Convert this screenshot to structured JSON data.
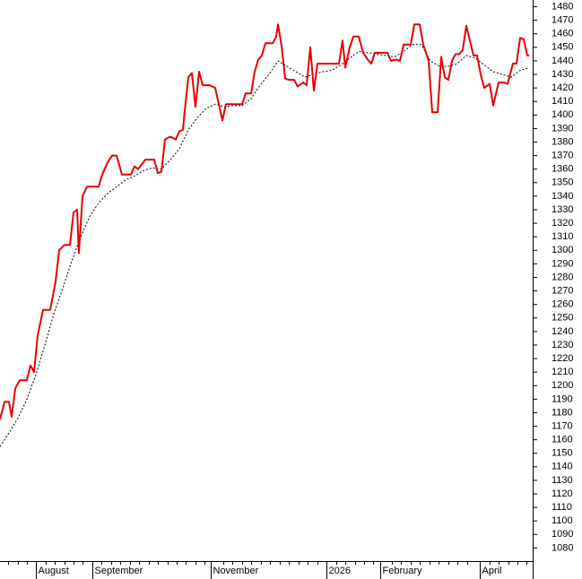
{
  "chart_data": {
    "type": "line",
    "xlim": [
      0,
      594
    ],
    "xticks": [
      {
        "value": 40,
        "label": "August"
      },
      {
        "value": 103,
        "label": "September"
      },
      {
        "value": 235,
        "label": "November"
      },
      {
        "value": 364,
        "label": "2026"
      },
      {
        "value": 424,
        "label": "February"
      },
      {
        "value": 535,
        "label": "April"
      }
    ],
    "xminorticks": [
      9,
      20,
      30,
      51,
      61,
      72,
      82,
      92,
      113,
      124,
      134,
      145,
      155,
      166,
      176,
      187,
      197,
      207,
      218,
      228,
      249,
      259,
      270,
      280,
      291,
      301,
      312,
      322,
      333,
      343,
      354,
      375,
      385,
      396,
      406,
      416,
      437,
      447,
      458,
      468,
      479,
      489,
      500,
      510,
      521,
      546,
      556,
      567,
      577,
      587
    ],
    "ylim": [
      1071,
      1485
    ],
    "yticks": [
      1080,
      1090,
      1100,
      1110,
      1120,
      1130,
      1140,
      1150,
      1160,
      1170,
      1180,
      1190,
      1200,
      1210,
      1220,
      1230,
      1240,
      1250,
      1260,
      1270,
      1280,
      1290,
      1300,
      1310,
      1320,
      1330,
      1340,
      1350,
      1360,
      1370,
      1380,
      1390,
      1400,
      1410,
      1420,
      1430,
      1440,
      1450,
      1460,
      1470,
      1480
    ],
    "series": [
      {
        "color": "#e60000",
        "style": "solid",
        "x": [
          0,
          5,
          10,
          13,
          17,
          22,
          30,
          34,
          38,
          42,
          48,
          56,
          62,
          66,
          72,
          78,
          82,
          86,
          88,
          92,
          97,
          110,
          114,
          120,
          125,
          130,
          136,
          146,
          150,
          154,
          162,
          172,
          176,
          180,
          184,
          190,
          196,
          200,
          204,
          206,
          210,
          214,
          218,
          222,
          226,
          234,
          240,
          244,
          248,
          252,
          260,
          270,
          274,
          280,
          284,
          288,
          292,
          296,
          304,
          308,
          310,
          314,
          318,
          322,
          328,
          332,
          338,
          342,
          346,
          350,
          354,
          360,
          366,
          378,
          382,
          385,
          390,
          394,
          400,
          405,
          410,
          414,
          418,
          426,
          432,
          436,
          442,
          446,
          450,
          458,
          462,
          468,
          472,
          478,
          482,
          488,
          492,
          496,
          500,
          504,
          508,
          512,
          516,
          520,
          524,
          528,
          532,
          536,
          540,
          546,
          550,
          556,
          562,
          566,
          572,
          576,
          580,
          584,
          588,
          590
        ],
        "values": [
          1175,
          1188,
          1188,
          1177,
          1198,
          1204,
          1204,
          1215,
          1210,
          1237,
          1256,
          1256,
          1277,
          1300,
          1304,
          1304,
          1328,
          1330,
          1298,
          1340,
          1347,
          1347,
          1356,
          1365,
          1370,
          1370,
          1356,
          1356,
          1362,
          1360,
          1367,
          1367,
          1357,
          1358,
          1382,
          1384,
          1382,
          1388,
          1389,
          1403,
          1428,
          1431,
          1406,
          1432,
          1422,
          1422,
          1420,
          1408,
          1396,
          1408,
          1408,
          1408,
          1416,
          1416,
          1432,
          1441,
          1444,
          1453,
          1453,
          1458,
          1467,
          1451,
          1427,
          1426,
          1426,
          1421,
          1424,
          1422,
          1450,
          1418,
          1438,
          1438,
          1438,
          1438,
          1455,
          1435,
          1450,
          1458,
          1458,
          1446,
          1441,
          1438,
          1446,
          1446,
          1446,
          1440,
          1441,
          1440,
          1452,
          1452,
          1467,
          1467,
          1452,
          1440,
          1402,
          1402,
          1443,
          1428,
          1426,
          1440,
          1445,
          1445,
          1448,
          1466,
          1455,
          1444,
          1444,
          1430,
          1420,
          1423,
          1407,
          1424,
          1424,
          1423,
          1438,
          1438,
          1457,
          1456,
          1444,
          1444
        ]
      },
      {
        "color": "#000000",
        "style": "dotted",
        "x": [
          0,
          10,
          20,
          30,
          40,
          50,
          60,
          70,
          80,
          90,
          100,
          110,
          120,
          130,
          140,
          150,
          160,
          170,
          180,
          190,
          200,
          210,
          220,
          230,
          240,
          250,
          260,
          270,
          280,
          290,
          300,
          310,
          320,
          330,
          340,
          350,
          360,
          370,
          380,
          390,
          400,
          410,
          420,
          430,
          440,
          450,
          460,
          470,
          480,
          490,
          500,
          510,
          520,
          530,
          540,
          550,
          560,
          570,
          580,
          590
        ],
        "values": [
          1155,
          1165,
          1176,
          1190,
          1208,
          1230,
          1253,
          1272,
          1292,
          1310,
          1325,
          1335,
          1342,
          1347,
          1352,
          1355,
          1359,
          1361,
          1360,
          1367,
          1375,
          1389,
          1398,
          1405,
          1408,
          1406,
          1407,
          1407,
          1412,
          1422,
          1430,
          1440,
          1436,
          1432,
          1428,
          1430,
          1432,
          1433,
          1437,
          1442,
          1447,
          1446,
          1445,
          1444,
          1443,
          1447,
          1452,
          1452,
          1440,
          1436,
          1436,
          1438,
          1444,
          1442,
          1437,
          1432,
          1430,
          1428,
          1433,
          1435
        ]
      }
    ]
  }
}
